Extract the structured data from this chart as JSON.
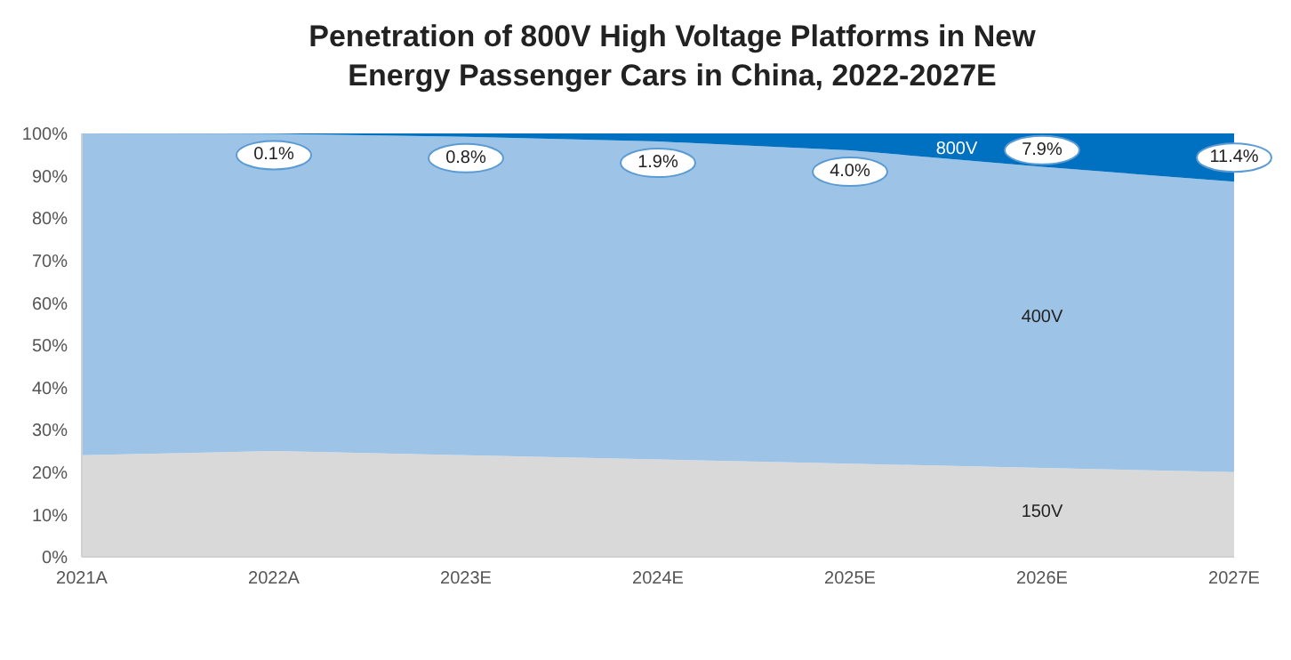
{
  "chart_data": {
    "type": "area",
    "stacked": true,
    "title": "Penetration of 800V High Voltage Platforms in New Energy Passenger Cars in China, 2022-2027E",
    "categories": [
      "2021A",
      "2022A",
      "2023E",
      "2024E",
      "2025E",
      "2026E",
      "2027E"
    ],
    "series": [
      {
        "name": "150V",
        "color": "#d9d9d9",
        "values": [
          24,
          25,
          24,
          23,
          22,
          21,
          20
        ]
      },
      {
        "name": "400V",
        "color": "#9dc3e6",
        "values": [
          76,
          74.9,
          75.2,
          75.1,
          74,
          71.1,
          68.6
        ]
      },
      {
        "name": "800V",
        "color": "#0070c0",
        "values": [
          0,
          0.1,
          0.8,
          1.9,
          4.0,
          7.9,
          11.4
        ],
        "value_labels": [
          null,
          "0.1%",
          "0.8%",
          "1.9%",
          "4.0%",
          "7.9%",
          "11.4%"
        ]
      }
    ],
    "ylim": [
      0,
      100
    ],
    "yticks": [
      {
        "value": 0,
        "label": "0%"
      },
      {
        "value": 10,
        "label": "10%"
      },
      {
        "value": 20,
        "label": "20%"
      },
      {
        "value": 30,
        "label": "30%"
      },
      {
        "value": 40,
        "label": "40%"
      },
      {
        "value": 50,
        "label": "50%"
      },
      {
        "value": 60,
        "label": "60%"
      },
      {
        "value": 70,
        "label": "70%"
      },
      {
        "value": 80,
        "label": "80%"
      },
      {
        "value": 90,
        "label": "90%"
      },
      {
        "value": 100,
        "label": "100%"
      }
    ],
    "grid": false,
    "legend": false
  }
}
